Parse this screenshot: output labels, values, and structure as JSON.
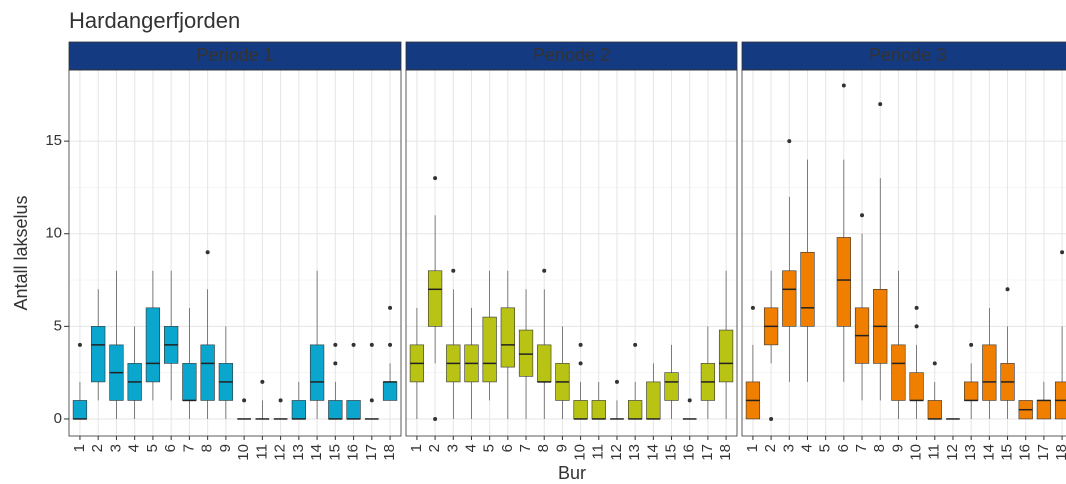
{
  "chart_data": {
    "type": "box",
    "title": "Hardangerfjorden",
    "xlabel": "Bur",
    "ylabel": "Antall lakselus",
    "categories": [
      "1",
      "2",
      "3",
      "4",
      "5",
      "6",
      "7",
      "8",
      "9",
      "10",
      "11",
      "12",
      "13",
      "14",
      "15",
      "16",
      "17",
      "18"
    ],
    "ylim": [
      -0.92,
      18.84
    ],
    "yticks": [
      0,
      5,
      10,
      15
    ],
    "grid": true,
    "panels": [
      {
        "name": "Periode 1",
        "color": "#0aa6cd",
        "boxes": [
          {
            "min": 0,
            "q1": 0,
            "median": 0,
            "q3": 1,
            "max": 2,
            "outliers": [
              4
            ]
          },
          {
            "min": 1,
            "q1": 2,
            "median": 4,
            "q3": 5,
            "max": 7,
            "outliers": []
          },
          {
            "min": 0,
            "q1": 1,
            "median": 2.5,
            "q3": 4,
            "max": 8,
            "outliers": []
          },
          {
            "min": 0,
            "q1": 1,
            "median": 2,
            "q3": 3,
            "max": 5,
            "outliers": []
          },
          {
            "min": 1,
            "q1": 2,
            "median": 3,
            "q3": 6,
            "max": 8,
            "outliers": []
          },
          {
            "min": 1,
            "q1": 3,
            "median": 4,
            "q3": 5,
            "max": 8,
            "outliers": []
          },
          {
            "min": 0,
            "q1": 1,
            "median": 1,
            "q3": 3,
            "max": 6,
            "outliers": []
          },
          {
            "min": 0,
            "q1": 1,
            "median": 3,
            "q3": 4,
            "max": 7,
            "outliers": [
              9
            ]
          },
          {
            "min": 0,
            "q1": 1,
            "median": 2,
            "q3": 3,
            "max": 5,
            "outliers": []
          },
          {
            "min": 0,
            "q1": 0,
            "median": 0,
            "q3": 0,
            "max": 0,
            "outliers": [
              1
            ]
          },
          {
            "min": 0,
            "q1": 0,
            "median": 0,
            "q3": 0,
            "max": 1,
            "outliers": [
              2
            ]
          },
          {
            "min": 0,
            "q1": 0,
            "median": 0,
            "q3": 0,
            "max": 0,
            "outliers": [
              1
            ]
          },
          {
            "min": 0,
            "q1": 0,
            "median": 0,
            "q3": 1,
            "max": 2,
            "outliers": []
          },
          {
            "min": 0,
            "q1": 1,
            "median": 2,
            "q3": 4,
            "max": 8,
            "outliers": []
          },
          {
            "min": 0,
            "q1": 0,
            "median": 0,
            "q3": 1,
            "max": 2,
            "outliers": [
              3,
              4
            ]
          },
          {
            "min": 0,
            "q1": 0,
            "median": 0,
            "q3": 1,
            "max": 1,
            "outliers": [
              4
            ]
          },
          {
            "min": 0,
            "q1": 0,
            "median": 0,
            "q3": 0,
            "max": 0,
            "outliers": [
              1,
              4
            ]
          },
          {
            "min": 1,
            "q1": 1,
            "median": 2,
            "q3": 2,
            "max": 3,
            "outliers": [
              4,
              6
            ]
          }
        ]
      },
      {
        "name": "Periode 2",
        "color": "#b8c314",
        "boxes": [
          {
            "min": 0,
            "q1": 2,
            "median": 3,
            "q3": 4,
            "max": 6,
            "outliers": []
          },
          {
            "min": 3,
            "q1": 5,
            "median": 7,
            "q3": 8,
            "max": 11,
            "outliers": [
              0,
              13
            ]
          },
          {
            "min": 0,
            "q1": 2,
            "median": 3,
            "q3": 4,
            "max": 7,
            "outliers": [
              8
            ]
          },
          {
            "min": 0,
            "q1": 2,
            "median": 3,
            "q3": 4,
            "max": 6,
            "outliers": []
          },
          {
            "min": 1,
            "q1": 2,
            "median": 3,
            "q3": 5.5,
            "max": 8,
            "outliers": []
          },
          {
            "min": 0,
            "q1": 2.8,
            "median": 4,
            "q3": 6,
            "max": 8,
            "outliers": []
          },
          {
            "min": 0,
            "q1": 2.3,
            "median": 3.5,
            "q3": 4.8,
            "max": 7,
            "outliers": []
          },
          {
            "min": 0,
            "q1": 2,
            "median": 2,
            "q3": 4,
            "max": 7,
            "outliers": [
              8
            ]
          },
          {
            "min": 0,
            "q1": 1,
            "median": 2,
            "q3": 3,
            "max": 5,
            "outliers": []
          },
          {
            "min": 0,
            "q1": 0,
            "median": 0,
            "q3": 1,
            "max": 2,
            "outliers": [
              3,
              4
            ]
          },
          {
            "min": 0,
            "q1": 0,
            "median": 0,
            "q3": 1,
            "max": 2,
            "outliers": []
          },
          {
            "min": 0,
            "q1": 0,
            "median": 0,
            "q3": 0,
            "max": 1,
            "outliers": [
              2
            ]
          },
          {
            "min": 0,
            "q1": 0,
            "median": 0,
            "q3": 1,
            "max": 2,
            "outliers": [
              4
            ]
          },
          {
            "min": 0,
            "q1": 0,
            "median": 0,
            "q3": 2,
            "max": 3,
            "outliers": []
          },
          {
            "min": 0,
            "q1": 1,
            "median": 2,
            "q3": 2.5,
            "max": 4,
            "outliers": []
          },
          {
            "min": 0,
            "q1": 0,
            "median": 0,
            "q3": 0,
            "max": 0,
            "outliers": [
              1
            ]
          },
          {
            "min": 0,
            "q1": 1,
            "median": 2,
            "q3": 3,
            "max": 5,
            "outliers": []
          },
          {
            "min": 0,
            "q1": 2,
            "median": 3,
            "q3": 4.8,
            "max": 8,
            "outliers": []
          }
        ]
      },
      {
        "name": "Periode 3",
        "color": "#f07f00",
        "boxes": [
          {
            "min": 0,
            "q1": 0,
            "median": 1,
            "q3": 2,
            "max": 4,
            "outliers": [
              6
            ]
          },
          {
            "min": 3,
            "q1": 4,
            "median": 5,
            "q3": 6,
            "max": 8,
            "outliers": [
              0
            ]
          },
          {
            "min": 2,
            "q1": 5,
            "median": 7,
            "q3": 8,
            "max": 12,
            "outliers": [
              15
            ]
          },
          {
            "min": 2,
            "q1": 5,
            "median": 6,
            "q3": 9,
            "max": 14,
            "outliers": []
          },
          null,
          {
            "min": 2,
            "q1": 5,
            "median": 7.5,
            "q3": 9.8,
            "max": 14,
            "outliers": [
              18
            ]
          },
          {
            "min": 1,
            "q1": 3,
            "median": 4.5,
            "q3": 6,
            "max": 10,
            "outliers": [
              11
            ]
          },
          {
            "min": 1,
            "q1": 3,
            "median": 5,
            "q3": 7,
            "max": 13,
            "outliers": [
              17
            ]
          },
          {
            "min": 0,
            "q1": 1,
            "median": 3,
            "q3": 4,
            "max": 8,
            "outliers": []
          },
          {
            "min": 0,
            "q1": 1,
            "median": 1,
            "q3": 2.5,
            "max": 4,
            "outliers": [
              5,
              6
            ]
          },
          {
            "min": 0,
            "q1": 0,
            "median": 0,
            "q3": 1,
            "max": 2,
            "outliers": [
              3
            ]
          },
          {
            "min": 0,
            "q1": 0,
            "median": 0,
            "q3": 0,
            "max": 0,
            "outliers": []
          },
          {
            "min": 0,
            "q1": 1,
            "median": 1,
            "q3": 2,
            "max": 3,
            "outliers": [
              4
            ]
          },
          {
            "min": 0,
            "q1": 1,
            "median": 2,
            "q3": 4,
            "max": 6,
            "outliers": []
          },
          {
            "min": 0,
            "q1": 1,
            "median": 2,
            "q3": 3,
            "max": 5,
            "outliers": [
              7
            ]
          },
          {
            "min": 0,
            "q1": 0,
            "median": 0.5,
            "q3": 1,
            "max": 1,
            "outliers": []
          },
          {
            "min": 0,
            "q1": 0,
            "median": 1,
            "q3": 1,
            "max": 2,
            "outliers": []
          },
          {
            "min": 0,
            "q1": 0,
            "median": 1,
            "q3": 2,
            "max": 5,
            "outliers": [
              9
            ]
          }
        ]
      }
    ]
  }
}
